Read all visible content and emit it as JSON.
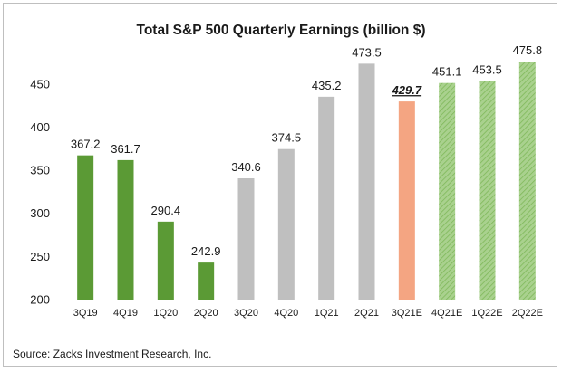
{
  "chart_data": {
    "type": "bar",
    "title": "Total S&P 500 Quarterly Earnings (billion $)",
    "xlabel": "",
    "ylabel": "",
    "ylim": [
      200,
      475
    ],
    "yticks": [
      200,
      250,
      300,
      350,
      400,
      450
    ],
    "categories": [
      "3Q19",
      "4Q19",
      "1Q20",
      "2Q20",
      "3Q20",
      "4Q20",
      "1Q21",
      "2Q21",
      "3Q21E",
      "4Q21E",
      "1Q22E",
      "2Q22E"
    ],
    "values": [
      367.2,
      361.7,
      290.4,
      242.9,
      340.6,
      374.5,
      435.2,
      473.5,
      429.7,
      451.1,
      453.5,
      475.8
    ],
    "data_labels": [
      "367.2",
      "361.7",
      "290.4",
      "242.9",
      "340.6",
      "374.5",
      "435.2",
      "473.5",
      "429.7",
      "451.1",
      "453.5",
      "475.8"
    ],
    "bar_colors": [
      "#5b9a35",
      "#5b9a35",
      "#5b9a35",
      "#5b9a35",
      "#bfbfbf",
      "#bfbfbf",
      "#bfbfbf",
      "#bfbfbf",
      "#f4a582",
      "#a9d18e",
      "#a9d18e",
      "#a9d18e"
    ],
    "bar_patterns": [
      "solid",
      "solid",
      "solid",
      "solid",
      "solid",
      "solid",
      "solid",
      "solid",
      "solid",
      "hatched",
      "hatched",
      "hatched"
    ],
    "highlight_label_index": 8,
    "grid": false,
    "legend": "none",
    "source": "Source: Zacks Investment Research, Inc."
  }
}
